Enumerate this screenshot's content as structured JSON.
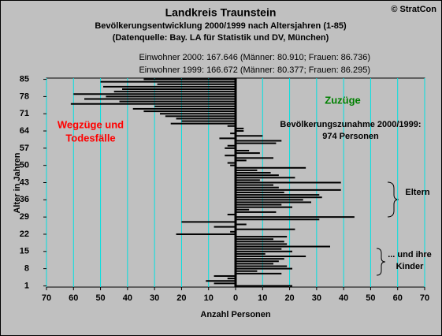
{
  "chart_data": {
    "type": "diverging-bar",
    "title": "Landkreis Traunstein",
    "subtitle": [
      "Bevölkerungsentwicklung 2000/1999  nach Altersjahren (1-85)",
      "(Datenquelle: Bay. LA für Statistik und DV, München)"
    ],
    "copyright": "© StratCon",
    "info": [
      "Einwohner 2000: 167.646  (Männer: 80.910; Frauen: 86.736)",
      "Einwohner 1999: 166.672  (Männer: 80.377; Frauen: 86.295)"
    ],
    "x_label": "Anzahl Personen",
    "y_label": "Alter in Jahren",
    "annotations": [
      {
        "text": [
          "Wegzüge und",
          "Todesfälle"
        ],
        "color": "#ff0000"
      },
      {
        "text": [
          "Zuzüge"
        ],
        "color": "#008000"
      },
      {
        "text": [
          "Bevölkerungszunahme 2000/1999:",
          "974 Personen"
        ],
        "color": "#000000"
      },
      {
        "text": [
          "Eltern"
        ],
        "color": "#000000"
      },
      {
        "text": [
          "... und ihre",
          "Kinder"
        ],
        "color": "#000000"
      }
    ],
    "categories": [
      "1",
      null,
      null,
      null,
      null,
      null,
      null,
      "8",
      null,
      null,
      null,
      null,
      null,
      null,
      "15",
      null,
      null,
      null,
      null,
      null,
      null,
      "22",
      null,
      null,
      null,
      null,
      null,
      null,
      "29",
      null,
      null,
      null,
      null,
      null,
      null,
      "36",
      null,
      null,
      null,
      null,
      null,
      null,
      "43",
      null,
      null,
      null,
      null,
      null,
      null,
      "50",
      null,
      null,
      null,
      null,
      null,
      null,
      "57",
      null,
      null,
      null,
      null,
      null,
      null,
      "64",
      null,
      null,
      null,
      null,
      null,
      null,
      "71",
      null,
      null,
      null,
      null,
      null,
      null,
      "78",
      null,
      null,
      null,
      null,
      null,
      null,
      "85"
    ],
    "values": [
      21,
      -8,
      -11,
      -3,
      -8,
      17,
      8,
      21,
      19,
      14,
      16,
      18,
      26,
      11,
      21,
      17,
      35,
      19,
      18,
      14,
      19,
      -22,
      -2,
      22,
      -8,
      4,
      -20,
      31,
      44,
      -3,
      15,
      5,
      21,
      17,
      28,
      25,
      32,
      31,
      18,
      39,
      16,
      14,
      39,
      9,
      22,
      16,
      13,
      8,
      26,
      -2,
      -3,
      4,
      14,
      -4,
      9,
      5,
      -4,
      -3,
      15,
      17,
      -6,
      10,
      -2,
      3,
      3,
      -3,
      -24,
      -20,
      -22,
      -26,
      -28,
      -34,
      -38,
      -30,
      -61,
      -43,
      -56,
      -48,
      -60,
      -45,
      -42,
      -49,
      -29,
      -50,
      -34
    ],
    "color": "#000000",
    "xlim": [
      -70,
      70
    ],
    "xticks": [
      {
        "value": -70,
        "label": "70"
      },
      {
        "value": -60,
        "label": "60"
      },
      {
        "value": -50,
        "label": "50"
      },
      {
        "value": -40,
        "label": "40"
      },
      {
        "value": -30,
        "label": "30"
      },
      {
        "value": -20,
        "label": "20"
      },
      {
        "value": -10,
        "label": "10"
      },
      0,
      10,
      20,
      30,
      40,
      50,
      60,
      70
    ],
    "grid": true,
    "grid_color": "#00e0e0"
  }
}
